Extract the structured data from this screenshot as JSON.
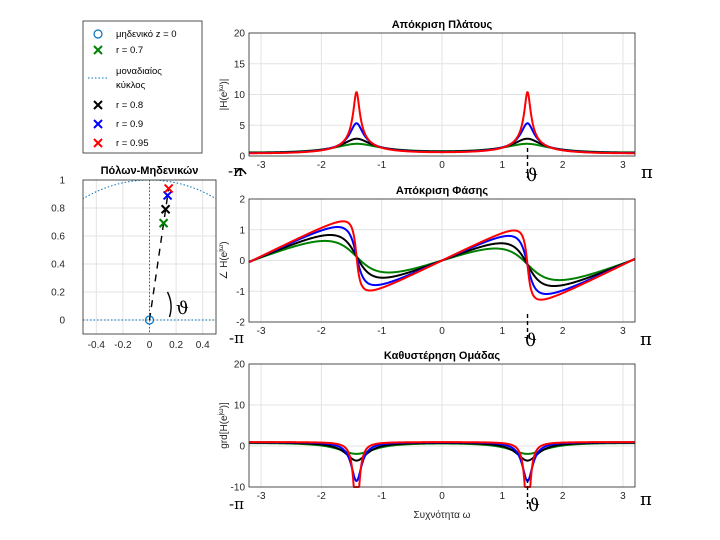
{
  "legend": {
    "items": [
      {
        "label": "μηδενικό z = 0",
        "marker": "o",
        "color": "#0072BD"
      },
      {
        "label": "r = 0.7",
        "marker": "x",
        "color": "#008000"
      },
      {
        "label": "μοναδιαίος",
        "label2": "κύκλος",
        "marker": "dotted",
        "color": "#0072BD"
      },
      {
        "label": "r = 0.8",
        "marker": "x",
        "color": "#000000"
      },
      {
        "label": "r = 0.9",
        "marker": "x",
        "color": "#0000FF"
      },
      {
        "label": "r = 0.95",
        "marker": "x",
        "color": "#FF0000"
      }
    ]
  },
  "annotations": {
    "theta": "ϑ",
    "neg_pi": "-π",
    "pi": "π"
  },
  "chart_data": [
    {
      "type": "scatter",
      "title": "Πόλων-Μηδενικών",
      "xlim": [
        -0.5,
        0.5
      ],
      "ylim": [
        -0.1,
        1.0
      ],
      "xticks": [
        "-0.4",
        "-0.2",
        "0",
        "0.2",
        "0.4"
      ],
      "yticks": [
        "0",
        "0.2",
        "0.4",
        "0.6",
        "0.8",
        "1"
      ],
      "zero": {
        "x": 0,
        "y": 0
      },
      "poles": [
        {
          "r": 0.7,
          "x": 0.106,
          "y": 0.692,
          "color": "#008000"
        },
        {
          "r": 0.8,
          "x": 0.121,
          "y": 0.791,
          "color": "#000000"
        },
        {
          "r": 0.9,
          "x": 0.136,
          "y": 0.89,
          "color": "#0000FF"
        },
        {
          "r": 0.95,
          "x": 0.144,
          "y": 0.939,
          "color": "#FF0000"
        }
      ],
      "theta_rad": 1.418
    },
    {
      "type": "line",
      "title": "Απόκριση Πλάτους",
      "ylabel": "|H(e^jω)|",
      "xlim": [
        -3.2,
        3.2
      ],
      "ylim": [
        0,
        20
      ],
      "xticks": [
        "-3",
        "-2",
        "-1",
        "0",
        "1",
        "2",
        "3"
      ],
      "yticks": [
        "0",
        "5",
        "10",
        "15",
        "20"
      ],
      "series": [
        {
          "r": 0.7,
          "color": "#008000"
        },
        {
          "r": 0.8,
          "color": "#000000"
        },
        {
          "r": 0.9,
          "color": "#0000FF"
        },
        {
          "r": 0.95,
          "color": "#FF0000"
        }
      ]
    },
    {
      "type": "line",
      "title": "Απόκριση Φάσης",
      "ylabel": "∠ H(e^jω)",
      "xlim": [
        -3.2,
        3.2
      ],
      "ylim": [
        -2,
        2
      ],
      "xticks": [
        "-3",
        "-2",
        "-1",
        "0",
        "1",
        "2",
        "3"
      ],
      "yticks": [
        "-2",
        "-1",
        "0",
        "1",
        "2"
      ],
      "series": [
        {
          "r": 0.7,
          "color": "#008000"
        },
        {
          "r": 0.8,
          "color": "#000000"
        },
        {
          "r": 0.9,
          "color": "#0000FF"
        },
        {
          "r": 0.95,
          "color": "#FF0000"
        }
      ]
    },
    {
      "type": "line",
      "title": "Καθυστέρηση Ομάδας",
      "ylabel": "grd[H(e^jω)]",
      "xlabel": "Συχνότητα ω",
      "xlim": [
        -3.2,
        3.2
      ],
      "ylim": [
        -10,
        20
      ],
      "xticks": [
        "-3",
        "-2",
        "-1",
        "0",
        "1",
        "2",
        "3"
      ],
      "yticks": [
        "-10",
        "0",
        "10",
        "20"
      ],
      "series": [
        {
          "r": 0.7,
          "color": "#008000"
        },
        {
          "r": 0.8,
          "color": "#000000"
        },
        {
          "r": 0.9,
          "color": "#0000FF"
        },
        {
          "r": 0.95,
          "color": "#FF0000"
        }
      ]
    }
  ]
}
